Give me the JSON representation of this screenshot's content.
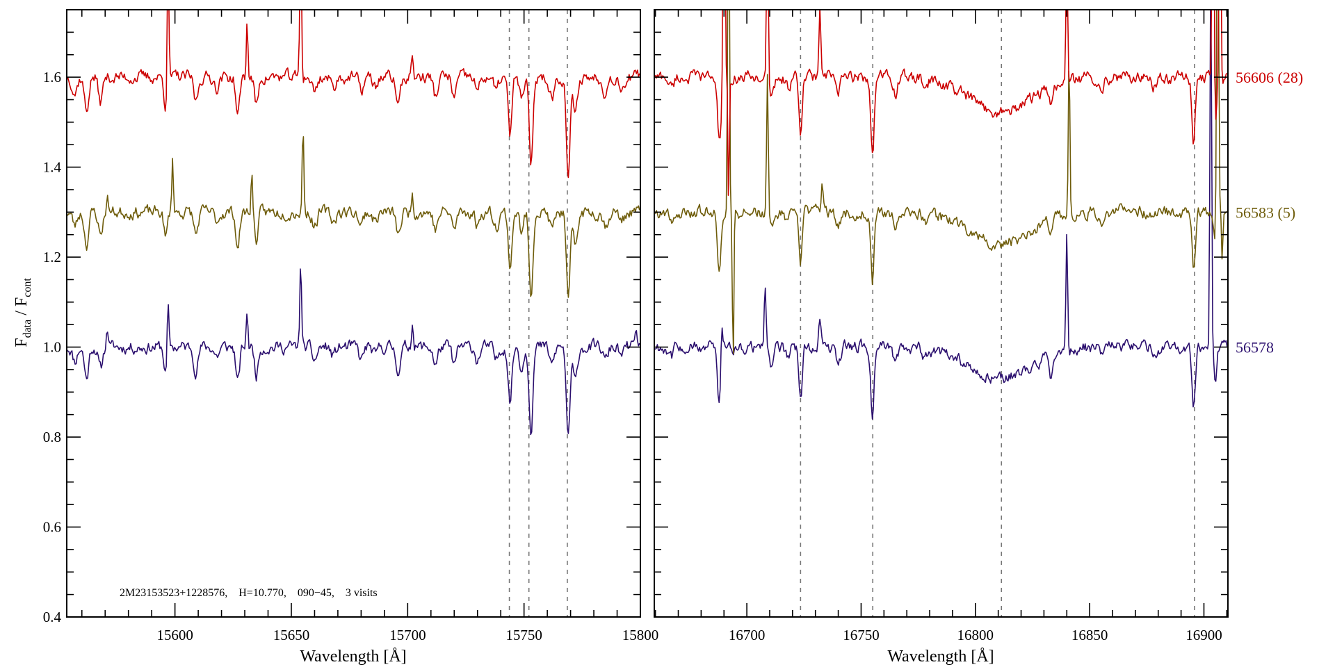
{
  "chart_data": {
    "type": "line",
    "ylabel": {
      "main": "F",
      "sub1": "data",
      "sep": " / F",
      "sub2": "cont"
    },
    "xlabel": "Wavelength [Å]",
    "ylim": [
      0.4,
      1.75
    ],
    "yticks": [
      "0.4",
      "0.6",
      "0.8",
      "1.0",
      "1.2",
      "1.4",
      "1.6"
    ],
    "ytick_values": [
      0.4,
      0.6,
      0.8,
      1.0,
      1.2,
      1.4,
      1.6
    ],
    "grid": false,
    "annotation": "2M23153523+1228576,    H=10.770,    090−45,    3 visits",
    "panels": [
      {
        "xlim": [
          15553.5,
          15800
        ],
        "xticks": [
          "15600",
          "15650",
          "15700",
          "15750",
          "15800"
        ],
        "xtick_values": [
          15600,
          15650,
          15700,
          15750,
          15800
        ],
        "ref_lines": [
          15743.7,
          15752.1,
          15768.6
        ]
      },
      {
        "xlim": [
          16659.5,
          16910.5
        ],
        "xticks": [
          "16700",
          "16750",
          "16800",
          "16850",
          "16900"
        ],
        "xtick_values": [
          16700,
          16750,
          16800,
          16850,
          16900
        ],
        "ref_lines": [
          16723.5,
          16755.1,
          16811.4,
          16895.9
        ]
      }
    ],
    "absorption_lines": [
      [
        15557,
        0.03,
        1.0
      ],
      [
        15562,
        0.07,
        0.9
      ],
      [
        15568,
        0.05,
        0.9
      ],
      [
        15596,
        0.06,
        0.7
      ],
      [
        15609,
        0.05,
        0.9
      ],
      [
        15618,
        0.02,
        1.0
      ],
      [
        15627,
        0.08,
        0.8
      ],
      [
        15635,
        0.06,
        0.8
      ],
      [
        15660,
        0.03,
        1.0
      ],
      [
        15668,
        0.02,
        1.0
      ],
      [
        15680,
        0.03,
        0.9
      ],
      [
        15686,
        0.02,
        1.0
      ],
      [
        15696,
        0.05,
        1.0
      ],
      [
        15712,
        0.04,
        0.9
      ],
      [
        15720,
        0.04,
        0.9
      ],
      [
        15730,
        0.03,
        0.9
      ],
      [
        15738,
        0.03,
        1.0
      ],
      [
        15744,
        0.12,
        0.8
      ],
      [
        15749,
        0.05,
        0.8
      ],
      [
        15753,
        0.18,
        0.8
      ],
      [
        15762,
        0.04,
        1.0
      ],
      [
        15769,
        0.2,
        0.8
      ],
      [
        15772,
        0.08,
        0.9
      ],
      [
        15785,
        0.03,
        1.0
      ],
      [
        15792,
        0.02,
        1.0
      ],
      [
        16667,
        0.02,
        1.0
      ],
      [
        16688,
        0.13,
        0.8
      ],
      [
        16711,
        0.04,
        0.9
      ],
      [
        16718,
        0.02,
        1.0
      ],
      [
        16723.5,
        0.12,
        0.7
      ],
      [
        16740,
        0.03,
        1.0
      ],
      [
        16755,
        0.16,
        0.7
      ],
      [
        16765,
        0.03,
        1.0
      ],
      [
        16778,
        0.02,
        1.0
      ],
      [
        16811,
        0.07,
        14
      ],
      [
        16833,
        0.04,
        0.8
      ],
      [
        16855,
        0.02,
        1.0
      ],
      [
        16878,
        0.02,
        1.0
      ],
      [
        16895.5,
        0.14,
        0.7
      ],
      [
        16905,
        0.08,
        0.6
      ]
    ],
    "noise": 0.008,
    "series": [
      {
        "name": "56578",
        "label": "56578",
        "offset": 1.0,
        "color": "#2b0f6e",
        "absorption_scale": 1.0,
        "seed": 11,
        "emission": [
          [
            15571,
            0.04,
            0.5
          ],
          [
            15597,
            0.11,
            0.35
          ],
          [
            15631,
            0.08,
            0.35
          ],
          [
            15654,
            0.2,
            0.35
          ],
          [
            15702,
            0.06,
            0.4
          ],
          [
            15798,
            0.03,
            0.6
          ],
          [
            16689,
            0.08,
            0.4
          ],
          [
            16708,
            0.15,
            0.4
          ],
          [
            16732,
            0.07,
            0.5
          ],
          [
            16840,
            0.25,
            0.35
          ],
          [
            16903,
            0.9,
            0.35
          ]
        ]
      },
      {
        "name": "56583 (5)",
        "label": "56583 (5)",
        "offset": 1.3,
        "color": "#6e5c0a",
        "absorption_scale": 1.0,
        "seed": 23,
        "emission": [
          [
            15571,
            0.03,
            0.5
          ],
          [
            15599,
            0.12,
            0.35
          ],
          [
            15633,
            0.09,
            0.35
          ],
          [
            15655,
            0.19,
            0.35
          ],
          [
            15702,
            0.05,
            0.4
          ],
          [
            16692,
            0.9,
            0.35
          ],
          [
            16694,
            -0.35,
            0.3
          ],
          [
            16709,
            0.3,
            0.35
          ],
          [
            16733,
            0.07,
            0.5
          ],
          [
            16841,
            0.35,
            0.35
          ],
          [
            16906,
            0.9,
            0.4
          ],
          [
            16908,
            -0.1,
            0.3
          ]
        ]
      },
      {
        "name": "56606 (28)",
        "label": "56606 (28)",
        "offset": 1.6,
        "color": "#cc0000",
        "absorption_scale": 1.1,
        "seed": 37,
        "emission": [
          [
            15597,
            0.3,
            0.35
          ],
          [
            15631,
            0.12,
            0.35
          ],
          [
            15654,
            0.35,
            0.35
          ],
          [
            15702,
            0.05,
            0.4
          ],
          [
            16690,
            0.9,
            0.35
          ],
          [
            16692,
            -0.3,
            0.3
          ],
          [
            16709,
            0.5,
            0.3
          ],
          [
            16732,
            0.15,
            0.4
          ],
          [
            16840,
            0.3,
            0.35
          ],
          [
            16904,
            0.9,
            0.35
          ],
          [
            16907,
            0.6,
            0.35
          ]
        ]
      }
    ]
  }
}
